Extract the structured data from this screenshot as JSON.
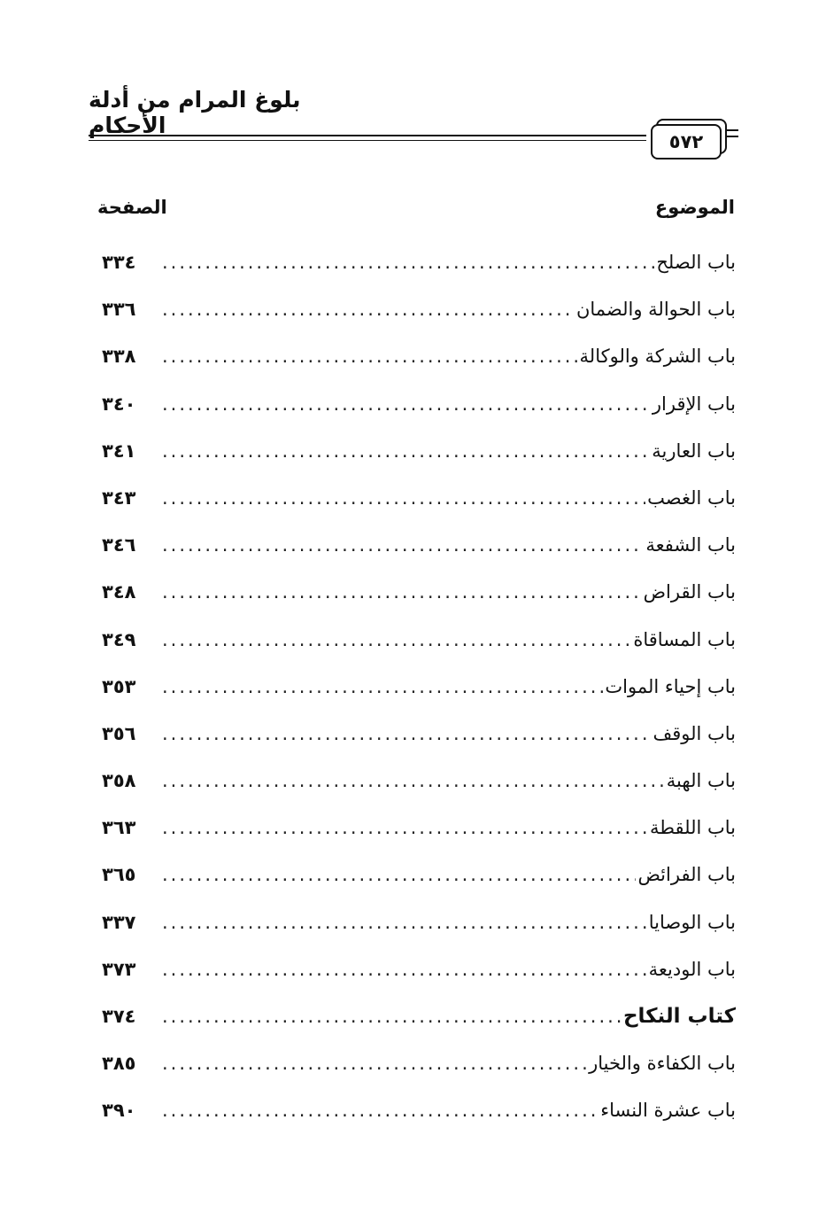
{
  "header": {
    "book_title": "بلوغ المرام من أدلة الأحكام",
    "page_number": "٥٧٢"
  },
  "columns": {
    "topic": "الموضوع",
    "page": "الصفحة"
  },
  "entries": [
    {
      "title": "باب الصلح",
      "page": "٣٣٤"
    },
    {
      "title": "باب الحوالة والضمان",
      "page": "٣٣٦"
    },
    {
      "title": "باب الشركة والوكالة",
      "page": "٣٣٨"
    },
    {
      "title": "باب الإقرار",
      "page": "٣٤٠"
    },
    {
      "title": "باب العارية",
      "page": "٣٤١"
    },
    {
      "title": "باب الغصب",
      "page": "٣٤٣"
    },
    {
      "title": "باب الشفعة",
      "page": "٣٤٦"
    },
    {
      "title": "باب القراض",
      "page": "٣٤٨"
    },
    {
      "title": "باب المساقاة",
      "page": "٣٤٩"
    },
    {
      "title": "باب إحياء الموات",
      "page": "٣٥٣"
    },
    {
      "title": "باب الوقف",
      "page": "٣٥٦"
    },
    {
      "title": "باب الهبة",
      "page": "٣٥٨"
    },
    {
      "title": "باب اللقطة",
      "page": "٣٦٣"
    },
    {
      "title": "باب الفرائض",
      "page": "٣٦٥"
    },
    {
      "title": "باب الوصايا",
      "page": "٣٣٧"
    },
    {
      "title": "باب الوديعة",
      "page": "٣٧٣"
    },
    {
      "title": "كتاب النكاح",
      "page": "٣٧٤",
      "bold": true
    },
    {
      "title": "باب الكفاءة والخيار",
      "page": "٣٨٥"
    },
    {
      "title": "باب عشرة النساء",
      "page": "٣٩٠"
    }
  ]
}
